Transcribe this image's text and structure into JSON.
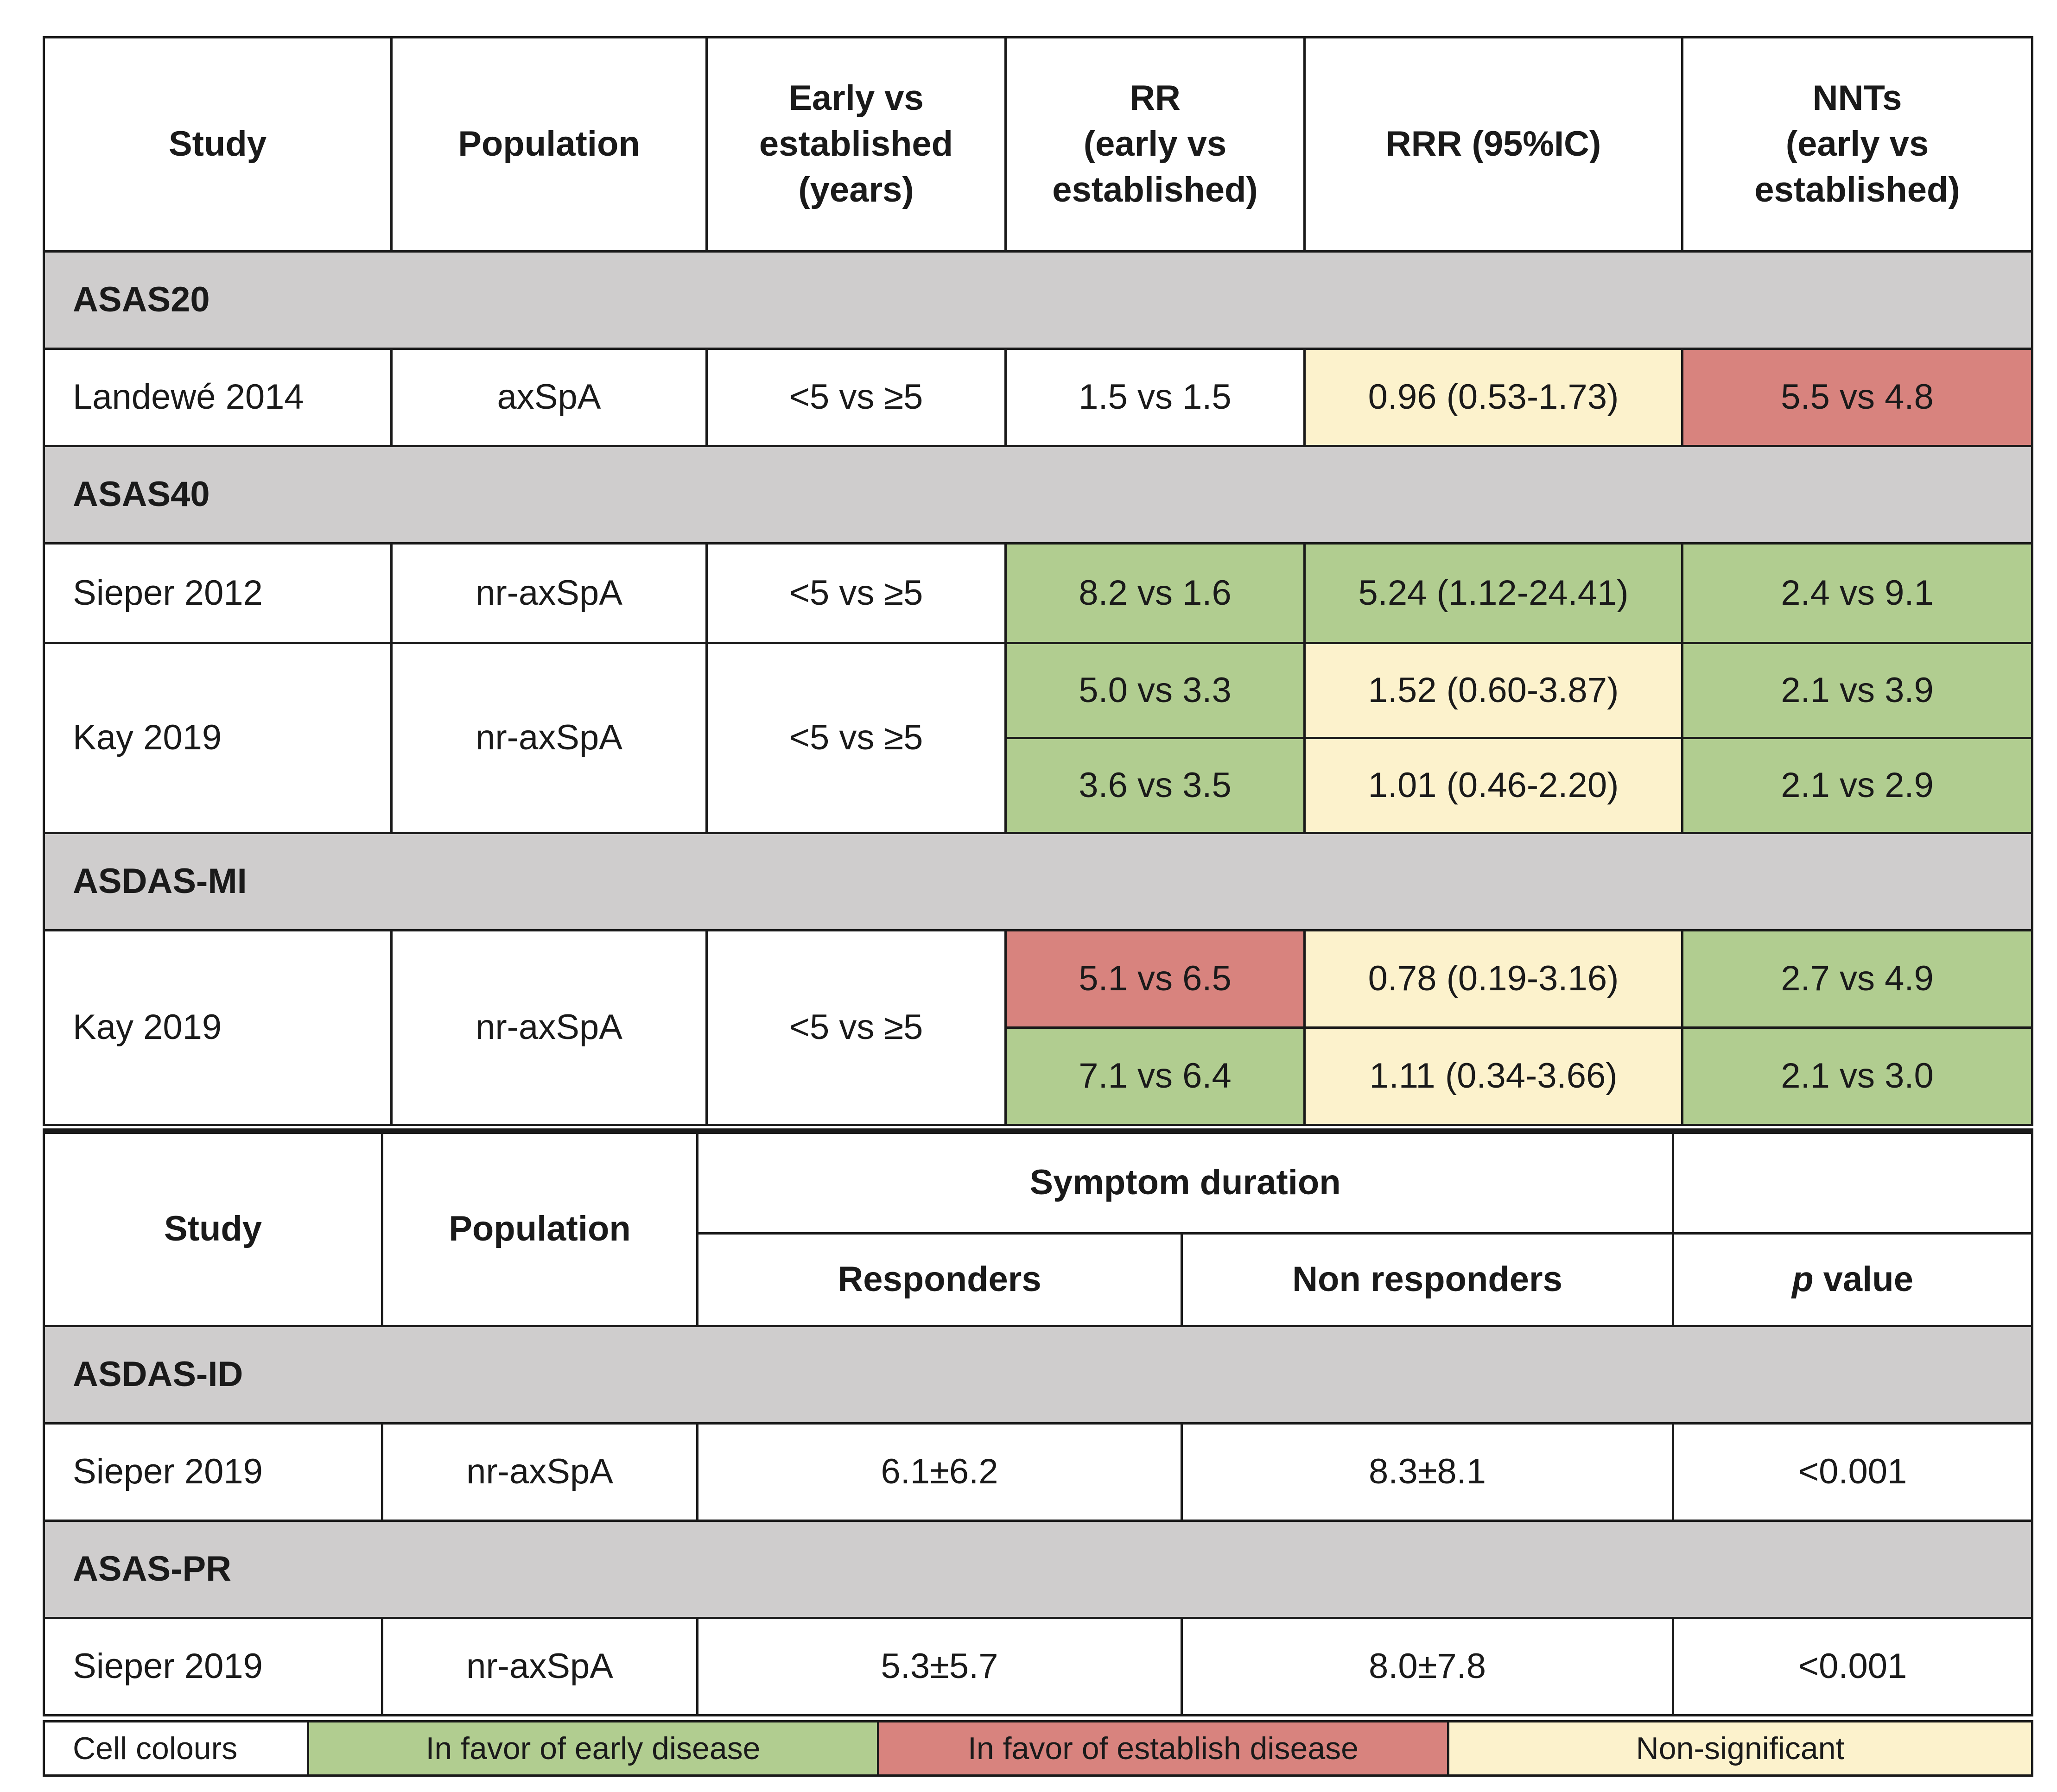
{
  "table1": {
    "headers": {
      "study": "Study",
      "population": "Population",
      "early_vs_established_l1": "Early vs",
      "early_vs_established_l2": "established",
      "early_vs_established_l3": "(years)",
      "rr_l1": "RR",
      "rr_l2": "(early vs",
      "rr_l3": "established)",
      "rrr": "RRR (95%IC)",
      "nnts_l1": "NNTs",
      "nnts_l2": "(early vs",
      "nnts_l3": "established)"
    },
    "sections": {
      "asas20": "ASAS20",
      "asas40": "ASAS40",
      "asdas_mi": "ASDAS-MI"
    },
    "rows": {
      "landewe": {
        "study": "Landewé 2014",
        "population": "axSpA",
        "early": "<5 vs ≥5",
        "rr": "1.5 vs 1.5",
        "rrr": "0.96 (0.53-1.73)",
        "nnt": "5.5 vs 4.8"
      },
      "sieper2012": {
        "study": "Sieper 2012",
        "population": "nr-axSpA",
        "early": "<5 vs ≥5",
        "rr": "8.2 vs 1.6",
        "rrr": "5.24 (1.12-24.41)",
        "nnt": "2.4 vs 9.1"
      },
      "kay2019a": {
        "study": "Kay 2019",
        "population": "nr-axSpA",
        "early": "<5 vs ≥5",
        "rr1": "5.0 vs 3.3",
        "rrr1": "1.52 (0.60-3.87)",
        "nnt1": "2.1 vs 3.9",
        "rr2": "3.6 vs 3.5",
        "rrr2": "1.01 (0.46-2.20)",
        "nnt2": "2.1 vs 2.9"
      },
      "kay2019b": {
        "study": "Kay 2019",
        "population": "nr-axSpA",
        "early": "<5 vs ≥5",
        "rr1": "5.1 vs 6.5",
        "rrr1": "0.78 (0.19-3.16)",
        "nnt1": "2.7 vs 4.9",
        "rr2": "7.1 vs 6.4",
        "rrr2": "1.11 (0.34-3.66)",
        "nnt2": "2.1 vs 3.0"
      }
    }
  },
  "table2": {
    "headers": {
      "study": "Study",
      "population": "Population",
      "symptom_duration": "Symptom duration",
      "responders": "Responders",
      "non_responders": "Non responders",
      "p_italic": "p",
      "p_rest": " value"
    },
    "sections": {
      "asdas_id": "ASDAS-ID",
      "asas_pr": "ASAS-PR"
    },
    "rows": {
      "sieper2019a": {
        "study": "Sieper 2019",
        "population": "nr-axSpA",
        "responders": "6.1±6.2",
        "non_responders": "8.3±8.1",
        "p": "<0.001"
      },
      "sieper2019b": {
        "study": "Sieper 2019",
        "population": "nr-axSpA",
        "responders": "5.3±5.7",
        "non_responders": "8.0±7.8",
        "p": "<0.001"
      }
    }
  },
  "legend": {
    "label": "Cell colours",
    "early": "In favor of early disease",
    "established": "In favor of establish disease",
    "nonsig": "Non-significant"
  },
  "colors": {
    "green": "#b1cd90",
    "red": "#d8837e",
    "yellow": "#fcf2cc",
    "section_gray": "#cfcdcd"
  }
}
